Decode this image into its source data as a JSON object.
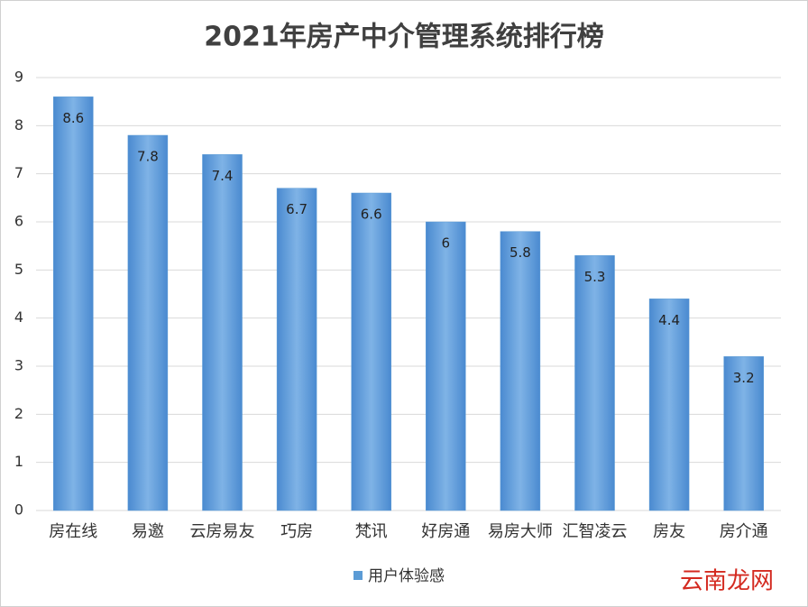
{
  "chart_data": {
    "type": "bar",
    "title": "2021年房产中介管理系统排行榜",
    "categories": [
      "房在线",
      "易邀",
      "云房易友",
      "巧房",
      "梵讯",
      "好房通",
      "易房大师",
      "汇智凌云",
      "房友",
      "房介通"
    ],
    "series": [
      {
        "name": "用户体验感",
        "color": "#5b9bd5",
        "values": [
          8.6,
          7.8,
          7.4,
          6.7,
          6.6,
          6,
          5.8,
          5.3,
          4.4,
          3.2
        ]
      }
    ],
    "ylim": [
      0,
      9
    ],
    "yticks": [
      0,
      1,
      2,
      3,
      4,
      5,
      6,
      7,
      8,
      9
    ],
    "grid": true,
    "legend": "bottom",
    "watermark": "云南龙网"
  }
}
